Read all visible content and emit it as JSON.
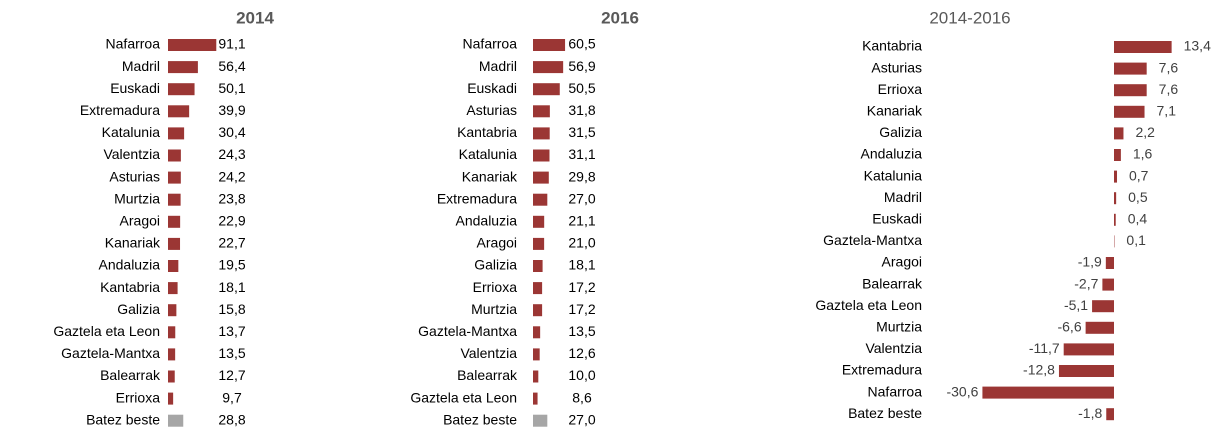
{
  "chart_data": [
    {
      "type": "bar",
      "orientation": "horizontal",
      "title": "2014",
      "categories": [
        "Nafarroa",
        "Madril",
        "Euskadi",
        "Extremadura",
        "Katalunia",
        "Valentzia",
        "Asturias",
        "Murtzia",
        "Aragoi",
        "Kanariak",
        "Andaluzia",
        "Kantabria",
        "Galizia",
        "Gaztela eta Leon",
        "Gaztela-Mantxa",
        "Balearrak",
        "Errioxa",
        "Batez beste"
      ],
      "values": [
        91.1,
        56.4,
        50.1,
        39.9,
        30.4,
        24.3,
        24.2,
        23.8,
        22.9,
        22.7,
        19.5,
        18.1,
        15.8,
        13.7,
        13.5,
        12.7,
        9.7,
        28.8
      ],
      "value_labels": [
        "91,1",
        "56,4",
        "50,1",
        "39,9",
        "30,4",
        "24,3",
        "24,2",
        "23,8",
        "22,9",
        "22,7",
        "19,5",
        "18,1",
        "15,8",
        "13,7",
        "13,5",
        "12,7",
        "9,7",
        "28,8"
      ],
      "colors": [
        "#9b3634",
        "#9b3634",
        "#9b3634",
        "#9b3634",
        "#9b3634",
        "#9b3634",
        "#9b3634",
        "#9b3634",
        "#9b3634",
        "#9b3634",
        "#9b3634",
        "#9b3634",
        "#9b3634",
        "#9b3634",
        "#9b3634",
        "#9b3634",
        "#9b3634",
        "#a6a6a6"
      ]
    },
    {
      "type": "bar",
      "orientation": "horizontal",
      "title": "2016",
      "categories": [
        "Nafarroa",
        "Madril",
        "Euskadi",
        "Asturias",
        "Kantabria",
        "Katalunia",
        "Kanariak",
        "Extremadura",
        "Andaluzia",
        "Aragoi",
        "Galizia",
        "Errioxa",
        "Murtzia",
        "Gaztela-Mantxa",
        "Valentzia",
        "Balearrak",
        "Gaztela eta Leon",
        "Batez beste"
      ],
      "values": [
        60.5,
        56.9,
        50.5,
        31.8,
        31.5,
        31.1,
        29.8,
        27.0,
        21.1,
        21.0,
        18.1,
        17.2,
        17.2,
        13.5,
        12.6,
        10.0,
        8.6,
        27.0
      ],
      "value_labels": [
        "60,5",
        "56,9",
        "50,5",
        "31,8",
        "31,5",
        "31,1",
        "29,8",
        "27,0",
        "21,1",
        "21,0",
        "18,1",
        "17,2",
        "17,2",
        "13,5",
        "12,6",
        "10,0",
        "8,6",
        "27,0"
      ],
      "colors": [
        "#9b3634",
        "#9b3634",
        "#9b3634",
        "#9b3634",
        "#9b3634",
        "#9b3634",
        "#9b3634",
        "#9b3634",
        "#9b3634",
        "#9b3634",
        "#9b3634",
        "#9b3634",
        "#9b3634",
        "#9b3634",
        "#9b3634",
        "#9b3634",
        "#9b3634",
        "#a6a6a6"
      ]
    },
    {
      "type": "bar",
      "orientation": "horizontal",
      "title": "2014-2016",
      "categories": [
        "Kantabria",
        "Asturias",
        "Errioxa",
        "Kanariak",
        "Galizia",
        "Andaluzia",
        "Katalunia",
        "Madril",
        "Euskadi",
        "Gaztela-Mantxa",
        "Aragoi",
        "Balearrak",
        "Gaztela eta Leon",
        "Murtzia",
        "Valentzia",
        "Extremadura",
        "Nafarroa",
        "Batez beste"
      ],
      "values": [
        13.4,
        7.6,
        7.6,
        7.1,
        2.2,
        1.6,
        0.7,
        0.5,
        0.4,
        0.1,
        -1.9,
        -2.7,
        -5.1,
        -6.6,
        -11.7,
        -12.8,
        -30.6,
        -1.8
      ],
      "value_labels": [
        "13,4",
        "7,6",
        "7,6",
        "7,1",
        "2,2",
        "1,6",
        "0,7",
        "0,5",
        "0,4",
        "0,1",
        "-1,9",
        "-2,7",
        "-5,1",
        "-6,6",
        "-11,7",
        "-12,8",
        "-30,6",
        "-1,8"
      ],
      "colors": [
        "#9b3634",
        "#9b3634",
        "#9b3634",
        "#9b3634",
        "#9b3634",
        "#9b3634",
        "#9b3634",
        "#9b3634",
        "#9b3634",
        "#9b3634",
        "#9b3634",
        "#9b3634",
        "#9b3634",
        "#9b3634",
        "#9b3634",
        "#9b3634",
        "#9b3634",
        "#9b3634"
      ]
    }
  ]
}
